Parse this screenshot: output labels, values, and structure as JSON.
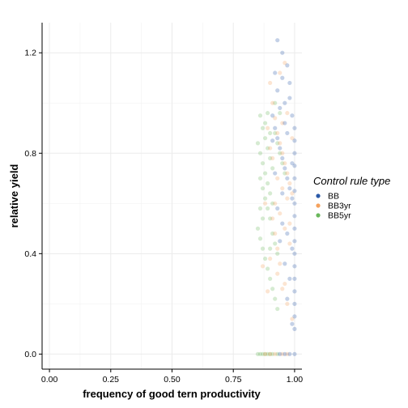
{
  "chart_data": {
    "type": "scatter",
    "xlabel": "frequency of good tern productivity",
    "ylabel": "relative yield",
    "xlim": [
      -0.03,
      1.03
    ],
    "ylim": [
      -0.06,
      1.32
    ],
    "x_ticks": [
      0.0,
      0.25,
      0.5,
      0.75,
      1.0
    ],
    "x_tick_labels": [
      "0.00",
      "0.25",
      "0.50",
      "0.75",
      "1.00"
    ],
    "y_ticks": [
      0.0,
      0.4,
      0.8,
      1.2
    ],
    "y_tick_labels": [
      "0.0",
      "0.4",
      "0.8",
      "1.2"
    ],
    "grid": true,
    "legend": {
      "title": "Control rule type",
      "position": "right"
    },
    "series": [
      {
        "name": "BB",
        "color": "#2b5aa8",
        "points": [
          [
            0.92,
            1.12
          ],
          [
            0.93,
            1.05
          ],
          [
            0.94,
            0.98
          ],
          [
            0.95,
            1.1
          ],
          [
            0.96,
            0.92
          ],
          [
            0.97,
            0.88
          ],
          [
            0.98,
            1.02
          ],
          [
            0.99,
            0.95
          ],
          [
            1.0,
            0.9
          ],
          [
            1.0,
            0.85
          ],
          [
            1.0,
            0.8
          ],
          [
            1.0,
            0.75
          ],
          [
            1.0,
            0.7
          ],
          [
            1.0,
            0.65
          ],
          [
            1.0,
            0.6
          ],
          [
            1.0,
            0.55
          ],
          [
            1.0,
            0.5
          ],
          [
            1.0,
            0.45
          ],
          [
            1.0,
            0.4
          ],
          [
            1.0,
            0.35
          ],
          [
            1.0,
            0.3
          ],
          [
            1.0,
            0.25
          ],
          [
            1.0,
            0.2
          ],
          [
            1.0,
            0.15
          ],
          [
            1.0,
            0.1
          ],
          [
            1.0,
            0.0
          ],
          [
            0.98,
            0.0
          ],
          [
            0.96,
            0.0
          ],
          [
            0.94,
            0.0
          ],
          [
            0.93,
            1.25
          ],
          [
            0.95,
            1.2
          ],
          [
            0.97,
            1.15
          ],
          [
            0.91,
            0.95
          ],
          [
            0.92,
            0.9
          ],
          [
            0.93,
            0.86
          ],
          [
            0.94,
            0.82
          ],
          [
            0.95,
            0.78
          ],
          [
            0.96,
            0.74
          ],
          [
            0.97,
            0.7
          ],
          [
            0.98,
            0.66
          ],
          [
            0.99,
            0.62
          ],
          [
            0.93,
            0.58
          ],
          [
            0.95,
            0.52
          ],
          [
            0.97,
            0.48
          ],
          [
            0.99,
            0.42
          ],
          [
            0.96,
            0.36
          ],
          [
            0.98,
            0.3
          ],
          [
            0.97,
            0.22
          ],
          [
            0.99,
            0.12
          ],
          [
            0.94,
            0.45
          ],
          [
            0.92,
            0.72
          ],
          [
            0.91,
            0.85
          ],
          [
            0.96,
            1.0
          ],
          [
            0.98,
            1.08
          ],
          [
            0.99,
            0.76
          ],
          [
            0.95,
            0.64
          ]
        ]
      },
      {
        "name": "BB3yr",
        "color": "#f5a25d",
        "points": [
          [
            0.9,
            1.08
          ],
          [
            0.91,
            1.0
          ],
          [
            0.92,
            0.94
          ],
          [
            0.93,
            0.88
          ],
          [
            0.94,
            0.84
          ],
          [
            0.95,
            0.8
          ],
          [
            0.96,
            0.76
          ],
          [
            0.97,
            0.72
          ],
          [
            0.98,
            0.68
          ],
          [
            0.99,
            0.64
          ],
          [
            0.92,
            0.6
          ],
          [
            0.94,
            0.56
          ],
          [
            0.96,
            0.5
          ],
          [
            0.98,
            0.44
          ],
          [
            0.9,
            0.38
          ],
          [
            0.93,
            0.32
          ],
          [
            0.95,
            0.26
          ],
          [
            0.97,
            0.2
          ],
          [
            0.99,
            0.14
          ],
          [
            0.88,
            0.0
          ],
          [
            0.9,
            0.0
          ],
          [
            0.92,
            0.0
          ],
          [
            0.95,
            0.0
          ],
          [
            0.97,
            0.0
          ],
          [
            0.91,
            0.78
          ],
          [
            0.93,
            0.7
          ],
          [
            0.95,
            0.66
          ],
          [
            0.97,
            0.62
          ],
          [
            0.89,
            0.9
          ],
          [
            0.9,
            0.82
          ],
          [
            0.94,
            1.12
          ],
          [
            0.96,
            1.16
          ],
          [
            0.92,
            0.48
          ],
          [
            0.94,
            0.36
          ],
          [
            0.96,
            0.28
          ],
          [
            0.98,
            0.52
          ],
          [
            0.99,
            0.86
          ],
          [
            0.91,
            0.54
          ],
          [
            0.93,
            0.42
          ],
          [
            0.87,
            0.35
          ],
          [
            0.88,
            0.6
          ],
          [
            0.89,
            0.25
          ],
          [
            0.95,
            0.92
          ],
          [
            0.97,
            0.96
          ]
        ]
      },
      {
        "name": "BB5yr",
        "color": "#6ab85c",
        "points": [
          [
            0.86,
            0.95
          ],
          [
            0.87,
            0.9
          ],
          [
            0.88,
            0.86
          ],
          [
            0.89,
            0.82
          ],
          [
            0.9,
            0.78
          ],
          [
            0.91,
            0.74
          ],
          [
            0.86,
            0.7
          ],
          [
            0.87,
            0.66
          ],
          [
            0.88,
            0.62
          ],
          [
            0.89,
            0.58
          ],
          [
            0.9,
            0.54
          ],
          [
            0.85,
            0.5
          ],
          [
            0.86,
            0.46
          ],
          [
            0.87,
            0.42
          ],
          [
            0.88,
            0.38
          ],
          [
            0.89,
            0.34
          ],
          [
            0.9,
            0.3
          ],
          [
            0.91,
            0.26
          ],
          [
            0.92,
            0.22
          ],
          [
            0.93,
            0.18
          ],
          [
            0.85,
            0.0
          ],
          [
            0.86,
            0.0
          ],
          [
            0.87,
            0.0
          ],
          [
            0.88,
            0.0
          ],
          [
            0.89,
            0.0
          ],
          [
            0.9,
            0.0
          ],
          [
            0.91,
            0.0
          ],
          [
            0.93,
            0.0
          ],
          [
            0.92,
            0.88
          ],
          [
            0.93,
            0.84
          ],
          [
            0.94,
            0.8
          ],
          [
            0.95,
            0.76
          ],
          [
            0.96,
            0.72
          ],
          [
            0.92,
            1.0
          ],
          [
            0.94,
            0.96
          ],
          [
            0.86,
            0.8
          ],
          [
            0.87,
            0.76
          ],
          [
            0.88,
            0.72
          ],
          [
            0.89,
            0.68
          ],
          [
            0.9,
            0.64
          ],
          [
            0.91,
            0.6
          ],
          [
            0.85,
            0.84
          ],
          [
            0.86,
            0.58
          ],
          [
            0.87,
            0.54
          ],
          [
            0.9,
            0.42
          ],
          [
            0.91,
            0.48
          ],
          [
            0.92,
            0.44
          ],
          [
            0.93,
            0.4
          ],
          [
            0.88,
            0.92
          ],
          [
            0.89,
            0.96
          ],
          [
            0.9,
            0.88
          ]
        ]
      }
    ]
  }
}
